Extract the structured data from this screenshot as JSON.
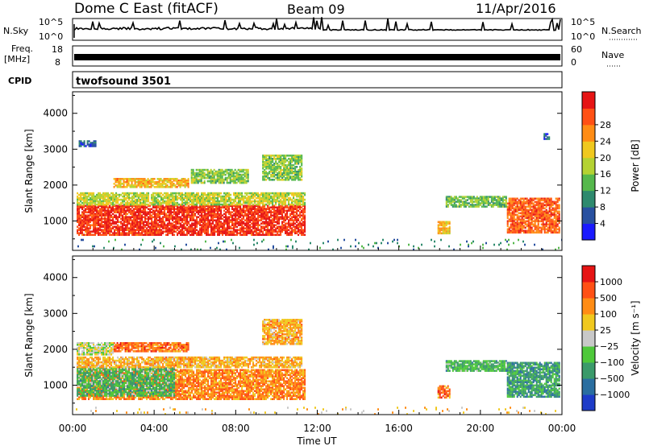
{
  "header": {
    "title": "Dome C East (fitACF)",
    "beam": "Beam 09",
    "date": "11/Apr/2016"
  },
  "strips": {
    "nsky_label": "N.Sky",
    "nsky_ticks": [
      "10^5",
      "10^0"
    ],
    "nsearch_label": "N.Search",
    "nsearch_ticks": [
      "10^5",
      "10^0"
    ],
    "freq_label": "Freq.",
    "freq_unit": "[MHz]",
    "freq_ticks": [
      "18",
      "8"
    ],
    "nave_label": "Nave",
    "nave_ticks": [
      "60",
      "0"
    ],
    "cpid_label": "CPID",
    "cpid_value": "twofsound 3501"
  },
  "chart_data": [
    {
      "type": "heatmap",
      "ylabel": "Slant Range [km]",
      "xlabel": "",
      "x_ticks": [
        "00:00",
        "04:00",
        "08:00",
        "12:00",
        "16:00",
        "20:00",
        "00:00"
      ],
      "x_range_hours": [
        0,
        24
      ],
      "y_ticks": [
        1000,
        2000,
        3000,
        4000
      ],
      "ylim": [
        180,
        4600
      ],
      "colorbar": {
        "label": "Power [dB]",
        "ticks": [
          "4",
          "8",
          "12",
          "16",
          "20",
          "24",
          "28"
        ],
        "colors": [
          "#1a1aff",
          "#2850a0",
          "#2e8a6e",
          "#55b84c",
          "#b4d232",
          "#f0c81e",
          "#ff8c14",
          "#ff5014",
          "#e61414"
        ]
      },
      "regions": [
        {
          "t0": 0.2,
          "t1": 11.4,
          "r0": 600,
          "r1": 1450,
          "level": 7.6
        },
        {
          "t0": 0.2,
          "t1": 11.4,
          "r0": 1450,
          "r1": 1800,
          "level": 4.2
        },
        {
          "t0": 2.0,
          "t1": 5.7,
          "r0": 1950,
          "r1": 2200,
          "level": 5.4
        },
        {
          "t0": 5.8,
          "t1": 8.6,
          "r0": 2050,
          "r1": 2450,
          "level": 3.4
        },
        {
          "t0": 9.3,
          "t1": 11.2,
          "r0": 2150,
          "r1": 2850,
          "level": 3.5
        },
        {
          "t0": 0.3,
          "t1": 1.1,
          "r0": 3100,
          "r1": 3250,
          "level": 1.3
        },
        {
          "t0": 21.3,
          "t1": 23.9,
          "r0": 700,
          "r1": 1650,
          "level": 6.8
        },
        {
          "t0": 18.3,
          "t1": 21.3,
          "r0": 1400,
          "r1": 1700,
          "level": 3.2
        },
        {
          "t0": 17.9,
          "t1": 18.5,
          "r0": 650,
          "r1": 1000,
          "level": 5.2
        },
        {
          "t0": 23.1,
          "t1": 23.4,
          "r0": 3300,
          "r1": 3450,
          "level": 1.0
        },
        {
          "t0": 0.0,
          "t1": 24.0,
          "r0": 200,
          "r1": 500,
          "level": 2.0
        }
      ]
    },
    {
      "type": "heatmap",
      "ylabel": "Slant Range [km]",
      "xlabel": "Time UT",
      "x_ticks": [
        "00:00",
        "04:00",
        "08:00",
        "12:00",
        "16:00",
        "20:00",
        "00:00"
      ],
      "x_range_hours": [
        0,
        24
      ],
      "y_ticks": [
        1000,
        2000,
        3000,
        4000
      ],
      "ylim": [
        180,
        4600
      ],
      "colorbar": {
        "label": "Velocity [m s⁻¹]",
        "ticks": [
          "1000",
          "500",
          "100",
          "25",
          "−25",
          "−100",
          "−500",
          "−1000"
        ],
        "colors": [
          "#1e3cc8",
          "#2a6ea0",
          "#3a9a6a",
          "#4ec83a",
          "#c8c8c8",
          "#f0c81e",
          "#ff8c14",
          "#ff5014",
          "#e61414"
        ]
      },
      "regions": [
        {
          "t0": 0.2,
          "t1": 11.4,
          "r0": 600,
          "r1": 1450,
          "level": 6.2
        },
        {
          "t0": 0.2,
          "t1": 5.0,
          "r0": 700,
          "r1": 1500,
          "level": 2.6
        },
        {
          "t0": 0.2,
          "t1": 11.2,
          "r0": 1500,
          "r1": 1800,
          "level": 5.4
        },
        {
          "t0": 2.0,
          "t1": 5.7,
          "r0": 1950,
          "r1": 2200,
          "level": 6.5
        },
        {
          "t0": 0.2,
          "t1": 2.0,
          "r0": 1850,
          "r1": 2200,
          "level": 4.0
        },
        {
          "t0": 9.3,
          "t1": 11.2,
          "r0": 2150,
          "r1": 2850,
          "level": 5.5
        },
        {
          "t0": 21.3,
          "t1": 23.9,
          "r0": 700,
          "r1": 1650,
          "level": 2.0
        },
        {
          "t0": 18.3,
          "t1": 21.3,
          "r0": 1400,
          "r1": 1700,
          "level": 2.6
        },
        {
          "t0": 17.9,
          "t1": 18.5,
          "r0": 650,
          "r1": 1000,
          "level": 6.5
        },
        {
          "t0": 0.0,
          "t1": 24.0,
          "r0": 200,
          "r1": 400,
          "level": 5.2
        }
      ]
    }
  ]
}
